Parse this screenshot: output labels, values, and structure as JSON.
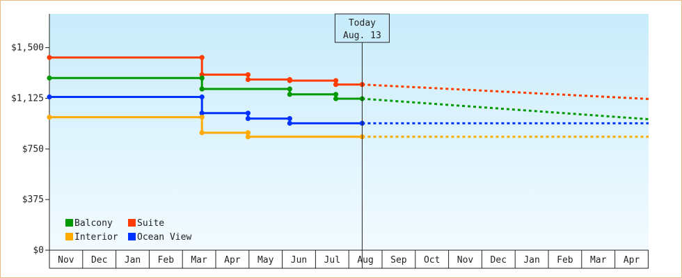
{
  "chart_data": {
    "type": "line",
    "title": "",
    "xlabel": "",
    "ylabel": "",
    "ylim": [
      0,
      1750
    ],
    "y_ticks": [
      {
        "value": 0,
        "label": "$0"
      },
      {
        "value": 375,
        "label": "$375"
      },
      {
        "value": 750,
        "label": "$750"
      },
      {
        "value": 1125,
        "label": "$1,125"
      },
      {
        "value": 1500,
        "label": "$1,500"
      }
    ],
    "x_months": [
      "Nov",
      "Dec",
      "Jan",
      "Feb",
      "Mar",
      "Apr",
      "May",
      "Jun",
      "Jul",
      "Aug",
      "Sep",
      "Oct",
      "Nov",
      "Dec",
      "Jan",
      "Feb",
      "Mar",
      "Apr"
    ],
    "x_range": [
      "2012-11-01",
      "2014-05-01"
    ],
    "line_style": "step",
    "today": {
      "date": "2013-08-13",
      "line1": "Today",
      "line2": "Aug. 13"
    },
    "legend": {
      "placement": "bottom-left"
    },
    "grid": false,
    "background": {
      "top": "#c9ecfb",
      "bottom": "#f2fbff"
    },
    "series": [
      {
        "name": "Suite",
        "color": "#ff3c00",
        "points": [
          {
            "date": "2012-11-01",
            "value": 1427
          },
          {
            "date": "2013-03-20",
            "value": 1300
          },
          {
            "date": "2013-05-01",
            "value": 1264
          },
          {
            "date": "2013-06-08",
            "value": 1256
          },
          {
            "date": "2013-07-20",
            "value": 1227
          }
        ],
        "forecast_end": {
          "date": "2014-05-01",
          "value": 1120
        }
      },
      {
        "name": "Balcony",
        "color": "#009900",
        "points": [
          {
            "date": "2012-11-01",
            "value": 1275
          },
          {
            "date": "2013-03-20",
            "value": 1194
          },
          {
            "date": "2013-06-08",
            "value": 1154
          },
          {
            "date": "2013-07-20",
            "value": 1122
          }
        ],
        "forecast_end": {
          "date": "2014-05-01",
          "value": 970
        }
      },
      {
        "name": "Ocean View",
        "color": "#0033ff",
        "points": [
          {
            "date": "2012-11-01",
            "value": 1135
          },
          {
            "date": "2013-03-20",
            "value": 1015
          },
          {
            "date": "2013-05-01",
            "value": 975
          },
          {
            "date": "2013-06-08",
            "value": 940
          }
        ],
        "forecast_end": {
          "date": "2014-05-01",
          "value": 940
        }
      },
      {
        "name": "Interior",
        "color": "#ffaa00",
        "points": [
          {
            "date": "2012-11-01",
            "value": 985
          },
          {
            "date": "2013-03-20",
            "value": 870
          },
          {
            "date": "2013-05-01",
            "value": 840
          }
        ],
        "forecast_end": {
          "date": "2014-05-01",
          "value": 840
        }
      }
    ]
  }
}
